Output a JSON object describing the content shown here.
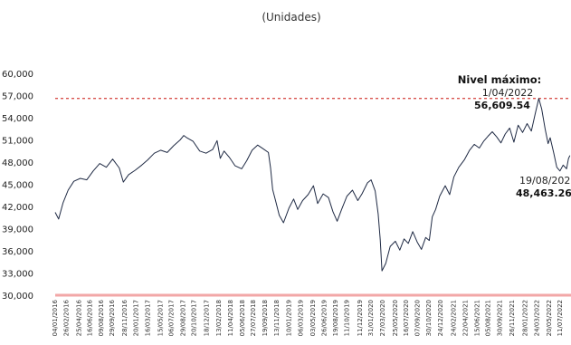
{
  "chart_data": {
    "type": "line",
    "title": "",
    "subtitle": "(Unidades)",
    "xlabel": "",
    "ylabel": "",
    "ylim": [
      30000,
      60000
    ],
    "yticks": [
      "30,000",
      "33,000",
      "36,000",
      "39,000",
      "42,000",
      "45,000",
      "48,000",
      "51,000",
      "54,000",
      "57,000",
      "60,000"
    ],
    "ytick_values": [
      30000,
      33000,
      36000,
      39000,
      42000,
      45000,
      48000,
      51000,
      54000,
      57000,
      60000
    ],
    "xlim": [
      "2016-01-04",
      "2022-08-31"
    ],
    "xticks": [
      "04/01/2016",
      "26/02/2016",
      "25/04/2016",
      "16/06/2016",
      "09/08/2016",
      "29/09/2016",
      "28/11/2016",
      "20/01/2017",
      "16/03/2017",
      "15/05/2017",
      "06/07/2017",
      "29/08/2017",
      "20/10/2017",
      "18/12/2017",
      "13/02/2018",
      "11/04/2018",
      "05/06/2018",
      "27/07/2018",
      "19/09/2018",
      "13/11/2018",
      "10/01/2019",
      "06/03/2019",
      "03/05/2019",
      "26/06/2019",
      "19/08/2019",
      "11/10/2019",
      "11/12/2019",
      "31/01/2020",
      "27/03/2020",
      "25/05/2020",
      "16/07/2020",
      "07/09/2020",
      "30/10/2020",
      "24/12/2020",
      "24/02/2021",
      "22/04/2021",
      "15/06/2021",
      "05/08/2021",
      "30/09/2021",
      "26/11/2021",
      "28/01/2022",
      "24/03/2022",
      "20/05/2022",
      "11/07/2022"
    ],
    "series": [
      {
        "color": "#1f2a44",
        "points": [
          [
            "2016-01-04",
            41200
          ],
          [
            "2016-01-20",
            40300
          ],
          [
            "2016-02-10",
            42500
          ],
          [
            "2016-03-05",
            44200
          ],
          [
            "2016-04-01",
            45400
          ],
          [
            "2016-05-01",
            45800
          ],
          [
            "2016-06-01",
            45600
          ],
          [
            "2016-07-01",
            46800
          ],
          [
            "2016-08-01",
            47800
          ],
          [
            "2016-09-01",
            47300
          ],
          [
            "2016-10-01",
            48400
          ],
          [
            "2016-11-01",
            47200
          ],
          [
            "2016-11-20",
            45300
          ],
          [
            "2016-12-15",
            46300
          ],
          [
            "2017-01-15",
            46900
          ],
          [
            "2017-02-15",
            47600
          ],
          [
            "2017-03-15",
            48300
          ],
          [
            "2017-04-15",
            49200
          ],
          [
            "2017-05-15",
            49600
          ],
          [
            "2017-06-15",
            49300
          ],
          [
            "2017-07-15",
            50200
          ],
          [
            "2017-08-15",
            51000
          ],
          [
            "2017-09-01",
            51600
          ],
          [
            "2017-09-15",
            51300
          ],
          [
            "2017-10-15",
            50800
          ],
          [
            "2017-11-15",
            49500
          ],
          [
            "2017-12-15",
            49200
          ],
          [
            "2018-01-15",
            49700
          ],
          [
            "2018-02-05",
            50900
          ],
          [
            "2018-02-20",
            48500
          ],
          [
            "2018-03-10",
            49500
          ],
          [
            "2018-04-05",
            48600
          ],
          [
            "2018-05-01",
            47500
          ],
          [
            "2018-06-01",
            47100
          ],
          [
            "2018-06-25",
            48200
          ],
          [
            "2018-07-20",
            49600
          ],
          [
            "2018-08-15",
            50300
          ],
          [
            "2018-09-10",
            49800
          ],
          [
            "2018-10-05",
            49300
          ],
          [
            "2018-10-15",
            47200
          ],
          [
            "2018-10-25",
            44300
          ],
          [
            "2018-11-10",
            42500
          ],
          [
            "2018-11-25",
            40800
          ],
          [
            "2018-12-15",
            39800
          ],
          [
            "2019-01-10",
            41800
          ],
          [
            "2019-02-01",
            43000
          ],
          [
            "2019-02-20",
            41600
          ],
          [
            "2019-03-15",
            42800
          ],
          [
            "2019-04-10",
            43600
          ],
          [
            "2019-05-05",
            44800
          ],
          [
            "2019-05-25",
            42400
          ],
          [
            "2019-06-20",
            43700
          ],
          [
            "2019-07-15",
            43200
          ],
          [
            "2019-08-05",
            41300
          ],
          [
            "2019-08-25",
            40000
          ],
          [
            "2019-09-15",
            41600
          ],
          [
            "2019-10-10",
            43400
          ],
          [
            "2019-11-05",
            44200
          ],
          [
            "2019-11-30",
            42800
          ],
          [
            "2019-12-20",
            43700
          ],
          [
            "2020-01-15",
            45200
          ],
          [
            "2020-02-01",
            45600
          ],
          [
            "2020-02-20",
            44100
          ],
          [
            "2020-03-05",
            41000
          ],
          [
            "2020-03-15",
            37500
          ],
          [
            "2020-03-23",
            33300
          ],
          [
            "2020-04-10",
            34300
          ],
          [
            "2020-05-01",
            36600
          ],
          [
            "2020-05-25",
            37300
          ],
          [
            "2020-06-15",
            36100
          ],
          [
            "2020-07-05",
            37600
          ],
          [
            "2020-07-25",
            37000
          ],
          [
            "2020-08-15",
            38600
          ],
          [
            "2020-09-05",
            37200
          ],
          [
            "2020-09-25",
            36200
          ],
          [
            "2020-10-15",
            37800
          ],
          [
            "2020-11-01",
            37400
          ],
          [
            "2020-11-15",
            40600
          ],
          [
            "2020-12-01",
            41600
          ],
          [
            "2020-12-20",
            43400
          ],
          [
            "2021-01-15",
            44800
          ],
          [
            "2021-02-05",
            43600
          ],
          [
            "2021-02-25",
            46000
          ],
          [
            "2021-03-20",
            47300
          ],
          [
            "2021-04-15",
            48300
          ],
          [
            "2021-05-10",
            49600
          ],
          [
            "2021-06-01",
            50400
          ],
          [
            "2021-06-25",
            49900
          ],
          [
            "2021-07-15",
            50800
          ],
          [
            "2021-08-05",
            51500
          ],
          [
            "2021-08-25",
            52100
          ],
          [
            "2021-09-15",
            51400
          ],
          [
            "2021-10-05",
            50600
          ],
          [
            "2021-10-25",
            51800
          ],
          [
            "2021-11-15",
            52600
          ],
          [
            "2021-12-05",
            50700
          ],
          [
            "2021-12-25",
            53000
          ],
          [
            "2022-01-15",
            52000
          ],
          [
            "2022-02-05",
            53200
          ],
          [
            "2022-02-25",
            52200
          ],
          [
            "2022-03-15",
            54500
          ],
          [
            "2022-04-01",
            56609.54
          ],
          [
            "2022-04-15",
            55200
          ],
          [
            "2022-05-01",
            52500
          ],
          [
            "2022-05-15",
            50500
          ],
          [
            "2022-05-25",
            51300
          ],
          [
            "2022-06-10",
            49300
          ],
          [
            "2022-06-25",
            47300
          ],
          [
            "2022-07-10",
            46800
          ],
          [
            "2022-07-25",
            47600
          ],
          [
            "2022-08-10",
            47100
          ],
          [
            "2022-08-19",
            48463.26
          ],
          [
            "2022-08-26",
            48900
          ]
        ]
      }
    ],
    "reference_lines": [
      {
        "y": 56609.54,
        "style": "dashed",
        "color": "#d9534f"
      },
      {
        "y": 30000,
        "style": "solid",
        "color": "#f2a7a7"
      }
    ],
    "annotations": [
      {
        "lines": [
          {
            "text": "Nivel máximo:",
            "weight": "bold"
          },
          {
            "text": "1/04/2022",
            "weight": "normal"
          },
          {
            "text": "56,609.54",
            "weight": "bold"
          }
        ]
      },
      {
        "lines": [
          {
            "text": "19/08/2022",
            "weight": "normal"
          },
          {
            "text": "48,463.26",
            "weight": "bold"
          }
        ]
      }
    ],
    "grid": false,
    "legend": "none"
  }
}
